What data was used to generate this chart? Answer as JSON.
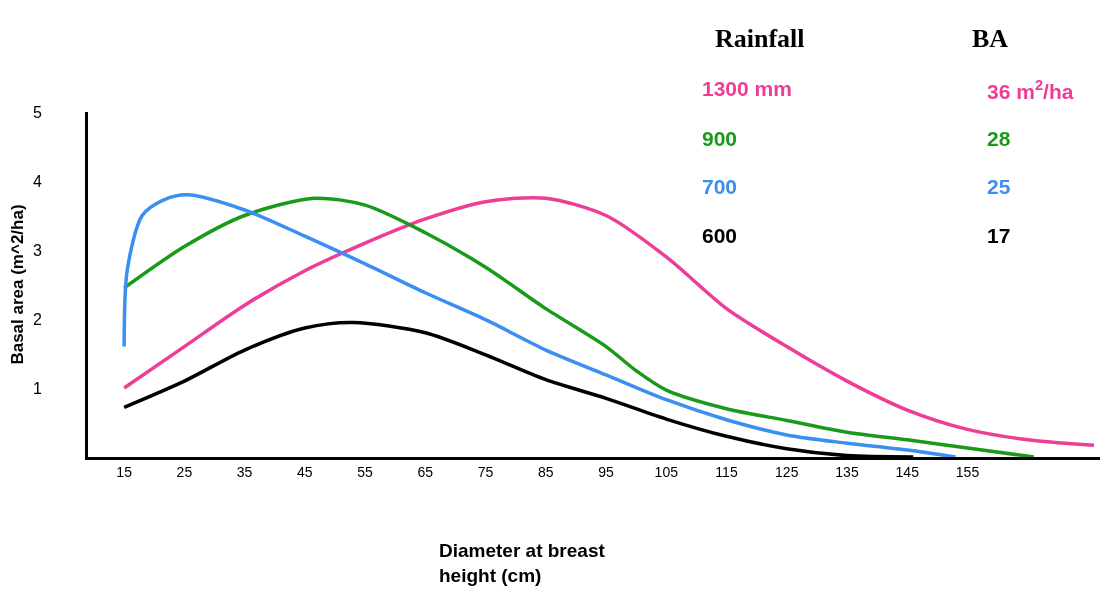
{
  "chart_data": {
    "type": "line",
    "xlabel": "Diameter at breast height (cm)",
    "ylabel": "Basal area (m^2/ha)",
    "xlim": [
      9,
      177
    ],
    "ylim": [
      0,
      5
    ],
    "xticks": [
      15,
      25,
      35,
      45,
      55,
      65,
      75,
      85,
      95,
      105,
      115,
      125,
      135,
      145,
      155
    ],
    "yticks": [
      1,
      2,
      3,
      4,
      5
    ],
    "legend": "top right",
    "line_style": "solid",
    "marker": "none",
    "annotations": [
      "Rainfall",
      "BA",
      "36 m$^{2}$/ha",
      "28",
      "25",
      "17"
    ],
    "series": [
      {
        "name": "1300 mm",
        "color": "#ee3d96",
        "x": [
          15,
          25,
          35,
          45,
          55,
          65,
          75,
          85,
          95,
          105,
          115,
          125,
          135,
          145,
          155,
          165,
          176
        ],
        "values": [
          1.0,
          1.6,
          2.2,
          2.7,
          3.1,
          3.45,
          3.7,
          3.75,
          3.5,
          2.9,
          2.15,
          1.6,
          1.1,
          0.68,
          0.4,
          0.25,
          0.17
        ]
      },
      {
        "name": "900",
        "color": "#1a9a1a",
        "x": [
          15,
          25,
          35,
          46.5,
          55,
          65,
          75,
          85,
          95,
          100,
          105,
          115,
          125,
          135,
          145,
          155,
          166
        ],
        "values": [
          2.45,
          3.05,
          3.5,
          3.75,
          3.65,
          3.25,
          2.75,
          2.15,
          1.6,
          1.25,
          0.97,
          0.7,
          0.53,
          0.36,
          0.25,
          0.13,
          0
        ]
      },
      {
        "name": "700",
        "color": "#3a8ff0",
        "x": [
          15,
          15.5,
          18,
          21.4,
          25.5,
          35,
          45,
          55,
          65,
          75,
          85,
          95,
          105,
          115,
          125,
          135,
          145,
          153
        ],
        "values": [
          1.6,
          2.7,
          3.5,
          3.72,
          3.8,
          3.58,
          3.2,
          2.8,
          2.38,
          1.99,
          1.55,
          1.19,
          0.83,
          0.54,
          0.32,
          0.2,
          0.1,
          0
        ]
      },
      {
        "name": "600",
        "color": "#000000",
        "x": [
          15,
          25,
          35,
          45,
          53,
          65,
          75,
          85,
          95,
          105,
          115,
          125,
          135,
          146
        ],
        "values": [
          0.72,
          1.1,
          1.55,
          1.87,
          1.95,
          1.8,
          1.48,
          1.12,
          0.85,
          0.55,
          0.3,
          0.12,
          0.02,
          0
        ]
      }
    ]
  }
}
